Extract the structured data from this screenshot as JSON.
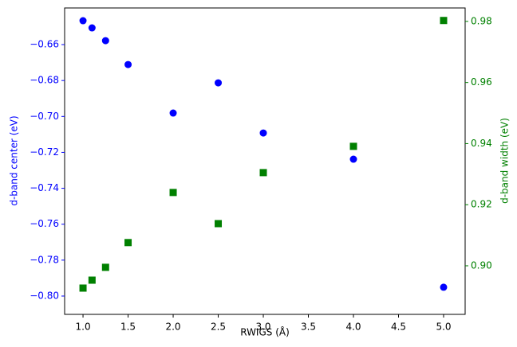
{
  "chart_data": {
    "type": "scatter",
    "x_label": "RWIGS (Å)",
    "y_label": "d-band center (eV)",
    "y2_label": "d-band width (eV)",
    "x": [
      1.0,
      1.1,
      1.25,
      1.5,
      2.0,
      2.5,
      3.0,
      4.0,
      5.0
    ],
    "series": [
      {
        "name": "d-band center",
        "color": "#0000ff",
        "marker": "circle",
        "values": [
          -0.6467,
          -0.6507,
          -0.6578,
          -0.6711,
          -0.6981,
          -0.6813,
          -0.7092,
          -0.7238,
          -0.7951
        ]
      },
      {
        "name": "d-band width",
        "color": "#008000",
        "marker": "square",
        "axis": "y2",
        "values": [
          0.8927,
          0.8953,
          0.8995,
          0.9076,
          0.924,
          0.9138,
          0.9305,
          0.9391,
          0.9803
        ]
      }
    ],
    "xlim": [
      0.796,
      5.239
    ],
    "xticks": [
      {
        "value": 1.0,
        "label": "1.0"
      },
      {
        "value": 1.5,
        "label": "1.5"
      },
      {
        "value": 2.0,
        "label": "2.0"
      },
      {
        "value": 2.5,
        "label": "2.5"
      },
      {
        "value": 3.0,
        "label": "3.0"
      },
      {
        "value": 3.5,
        "label": "3.5"
      },
      {
        "value": 4.0,
        "label": "4.0"
      },
      {
        "value": 4.5,
        "label": "4.5"
      },
      {
        "value": 5.0,
        "label": "5.0"
      }
    ],
    "ylim": [
      -0.8102,
      -0.6396
    ],
    "yticks": [
      {
        "value": -0.8,
        "label": "−0.80"
      },
      {
        "value": -0.78,
        "label": "−0.78"
      },
      {
        "value": -0.76,
        "label": "−0.76"
      },
      {
        "value": -0.74,
        "label": "−0.74"
      },
      {
        "value": -0.72,
        "label": "−0.72"
      },
      {
        "value": -0.7,
        "label": "−0.70"
      },
      {
        "value": -0.68,
        "label": "−0.68"
      },
      {
        "value": -0.66,
        "label": "−0.66"
      }
    ],
    "y2lim": [
      0.8841,
      0.9844
    ],
    "y2ticks": [
      {
        "value": 0.9,
        "label": "0.90"
      },
      {
        "value": 0.92,
        "label": "0.92"
      },
      {
        "value": 0.94,
        "label": "0.94"
      },
      {
        "value": 0.96,
        "label": "0.96"
      },
      {
        "value": 0.98,
        "label": "0.98"
      }
    ]
  }
}
